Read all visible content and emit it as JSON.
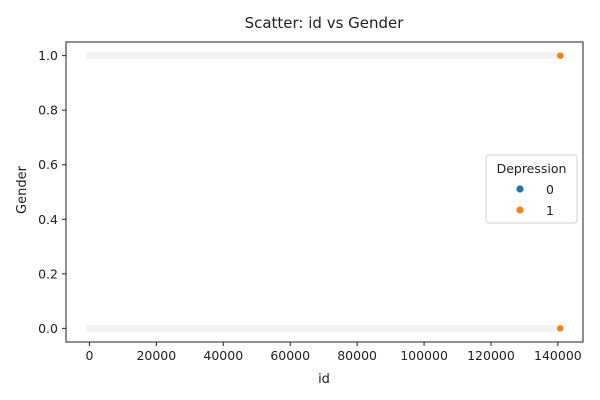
{
  "chart_data": {
    "type": "scatter",
    "title": "Scatter: id vs Gender",
    "xlabel": "id",
    "ylabel": "Gender",
    "xlim": [
      -7000,
      147500
    ],
    "ylim": [
      -0.05,
      1.05
    ],
    "xticks": [
      0,
      20000,
      40000,
      60000,
      80000,
      100000,
      120000,
      140000
    ],
    "yticks": [
      0.0,
      0.2,
      0.4,
      0.6,
      0.8,
      1.0
    ],
    "xtick_labels": [
      "0",
      "20000",
      "40000",
      "60000",
      "80000",
      "100000",
      "120000",
      "140000"
    ],
    "ytick_labels": [
      "0.0",
      "0.2",
      "0.4",
      "0.6",
      "0.8",
      "1.0"
    ],
    "grid": false,
    "legend": {
      "title": "Depression",
      "placement": "center-right",
      "entries": [
        {
          "label": "0",
          "color": "#1f77b4"
        },
        {
          "label": "1",
          "color": "#ff7f0e"
        }
      ]
    },
    "series": [
      {
        "name": "0",
        "color": "#1f77b4",
        "note_visible": "faint dense band",
        "x_range": [
          0,
          140700
        ],
        "y_levels": [
          0,
          1
        ]
      },
      {
        "name": "1",
        "color": "#ff7f0e",
        "points": [
          {
            "x": 140700,
            "y": 1.0
          },
          {
            "x": 140700,
            "y": 0.0
          }
        ]
      }
    ]
  }
}
